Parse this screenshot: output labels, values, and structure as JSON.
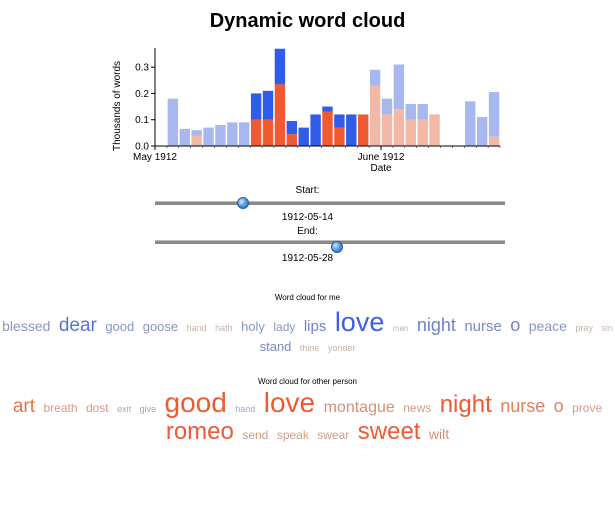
{
  "page": {
    "title": "Dynamic word cloud"
  },
  "chart_data": {
    "type": "bar",
    "title": "",
    "xlabel": "Date",
    "ylabel": "Thousands of words",
    "ylim": [
      0,
      0.35
    ],
    "yticks": [
      "0.0",
      "0.1",
      "0.2",
      "0.3"
    ],
    "xticks": [
      "May 1912",
      "June 1912"
    ],
    "stacked": true,
    "days": 29,
    "selection_start_index": 8,
    "selection_end_index": 17,
    "series": [
      {
        "name": "me",
        "colors": {
          "selected": "#2f5ce8",
          "unselected": "#a9b7ef"
        },
        "values": [
          0,
          0.18,
          0.065,
          0.02,
          0.07,
          0.08,
          0.09,
          0.09,
          0.1,
          0.11,
          0.135,
          0.05,
          0.07,
          0.12,
          0.02,
          0.05,
          0.12,
          0.0,
          0.06,
          0.06,
          0.17,
          0.06,
          0.06,
          0,
          0.0,
          0,
          0.17,
          0.11,
          0.17
        ]
      },
      {
        "name": "other person",
        "colors": {
          "selected": "#ef5a32",
          "unselected": "#f3b7a5"
        },
        "values": [
          0,
          0,
          0,
          0.04,
          0,
          0,
          0,
          0,
          0.1,
          0.1,
          0.235,
          0.045,
          0,
          0,
          0.13,
          0.07,
          0,
          0.12,
          0.23,
          0.12,
          0.14,
          0.1,
          0.1,
          0.12,
          0,
          0.0,
          0,
          0,
          0.035
        ]
      }
    ]
  },
  "sliders": {
    "start_label": "Start:",
    "end_label": "End:",
    "start_value": "1912-05-14",
    "end_value": "1912-05-28",
    "start_fraction": 0.25,
    "end_fraction": 0.52
  },
  "clouds": {
    "me": {
      "label": "Word cloud for me",
      "words": [
        {
          "text": "blessed",
          "size": 14,
          "color": "#8a95c4"
        },
        {
          "text": "dear",
          "size": 19,
          "color": "#5a72d6"
        },
        {
          "text": "good",
          "size": 13,
          "color": "#8a95c4"
        },
        {
          "text": "goose",
          "size": 13,
          "color": "#8a95c4"
        },
        {
          "text": "hand",
          "size": 9,
          "color": "#c4b3a8"
        },
        {
          "text": "hath",
          "size": 9,
          "color": "#c4b3a8"
        },
        {
          "text": "holy",
          "size": 13,
          "color": "#8a95c4"
        },
        {
          "text": "lady",
          "size": 12,
          "color": "#8a95c4"
        },
        {
          "text": "lips",
          "size": 15,
          "color": "#6f80cf"
        },
        {
          "text": "love",
          "size": 27,
          "color": "#3d5ee6"
        },
        {
          "text": "man",
          "size": 8,
          "color": "#c4b3a8"
        },
        {
          "text": "night",
          "size": 18,
          "color": "#6f80cf"
        },
        {
          "text": "nurse",
          "size": 15,
          "color": "#7a89cb"
        },
        {
          "text": "o",
          "size": 18,
          "color": "#6f80cf"
        },
        {
          "text": "peace",
          "size": 14,
          "color": "#8a95c4"
        },
        {
          "text": "pray",
          "size": 9,
          "color": "#c4b3a8"
        },
        {
          "text": "sin",
          "size": 9,
          "color": "#c4b3a8"
        },
        {
          "text": "stand",
          "size": 13,
          "color": "#7a89cb"
        },
        {
          "text": "thine",
          "size": 9,
          "color": "#c4b3a8"
        },
        {
          "text": "yonder",
          "size": 9,
          "color": "#c4b3a8"
        }
      ]
    },
    "other": {
      "label": "Word cloud for other person",
      "words": [
        {
          "text": "art",
          "size": 19,
          "color": "#e8724e"
        },
        {
          "text": "breath",
          "size": 12,
          "color": "#d19c88"
        },
        {
          "text": "dost",
          "size": 12,
          "color": "#d19c88"
        },
        {
          "text": "exit",
          "size": 9,
          "color": "#9aaac4"
        },
        {
          "text": "give",
          "size": 9,
          "color": "#9aaac4"
        },
        {
          "text": "good",
          "size": 28,
          "color": "#ef5a32"
        },
        {
          "text": "hand",
          "size": 9,
          "color": "#9aaac4"
        },
        {
          "text": "love",
          "size": 28,
          "color": "#ef5a32"
        },
        {
          "text": "montague",
          "size": 16,
          "color": "#d68f78"
        },
        {
          "text": "news",
          "size": 12,
          "color": "#d19c88"
        },
        {
          "text": "night",
          "size": 24,
          "color": "#ef5a32"
        },
        {
          "text": "nurse",
          "size": 18,
          "color": "#e0805f"
        },
        {
          "text": "o",
          "size": 18,
          "color": "#e0805f"
        },
        {
          "text": "prove",
          "size": 12,
          "color": "#d19c88"
        },
        {
          "text": "romeo",
          "size": 24,
          "color": "#ef5a32"
        },
        {
          "text": "send",
          "size": 12,
          "color": "#d19c88"
        },
        {
          "text": "speak",
          "size": 12,
          "color": "#d19c88"
        },
        {
          "text": "swear",
          "size": 12,
          "color": "#d19c88"
        },
        {
          "text": "sweet",
          "size": 24,
          "color": "#ef5a32"
        },
        {
          "text": "wilt",
          "size": 14,
          "color": "#d68f78"
        }
      ]
    }
  }
}
